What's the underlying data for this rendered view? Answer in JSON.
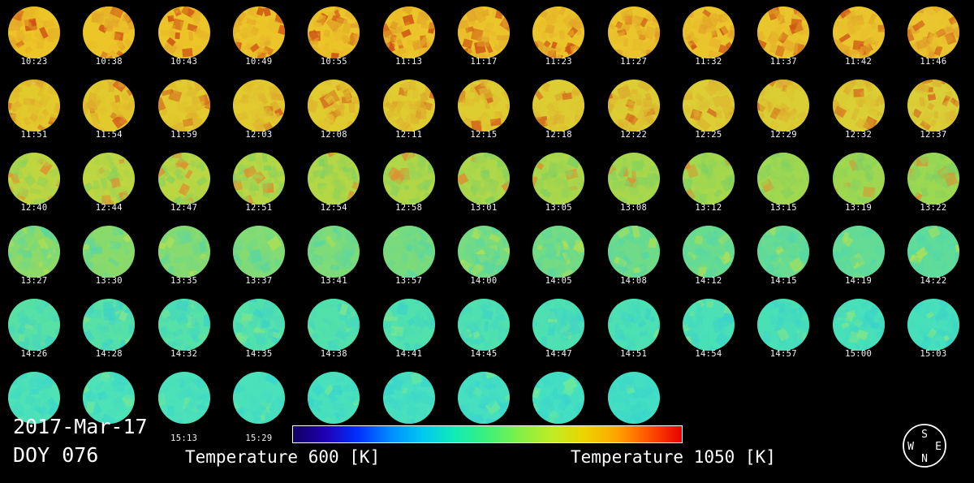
{
  "figure": {
    "date": "2017-Mar-17",
    "doy": "DOY 076",
    "colorbar": {
      "label_left": "Temperature 600 [K]",
      "label_right": "Temperature 1050 [K]",
      "min_k": 600,
      "max_k": 1050,
      "stops": [
        "#10005e",
        "#2000b4",
        "#0030ff",
        "#008cff",
        "#00c8f0",
        "#10ecb4",
        "#3cf078",
        "#82f046",
        "#c0ec24",
        "#ecd400",
        "#ffa400",
        "#ff5000",
        "#e80000"
      ]
    },
    "compass": {
      "top": "S",
      "bottom": "N",
      "left": "W",
      "right": "E"
    }
  },
  "grid": {
    "rows": [
      {
        "times": [
          "10:23",
          "10:38",
          "10:43",
          "10:49",
          "10:55",
          "11:13",
          "11:17",
          "11:23",
          "11:27",
          "11:32",
          "11:37",
          "11:42",
          "11:46"
        ],
        "palette": {
          "base": [
            "#ecc527",
            "#e9c62e"
          ],
          "spot": "#df9627",
          "speck": "#cf5214",
          "speck_prob": 0.2
        }
      },
      {
        "times": [
          "11:51",
          "11:54",
          "11:59",
          "12:03",
          "12:08",
          "12:11",
          "12:15",
          "12:18",
          "12:22",
          "12:25",
          "12:29",
          "12:32",
          "12:37"
        ],
        "palette": {
          "base": [
            "#e3ca2c",
            "#d9cf36"
          ],
          "spot": "#dda42b",
          "speck": "#d4641c",
          "speck_prob": 0.13
        }
      },
      {
        "times": [
          "12:40",
          "12:44",
          "12:47",
          "12:51",
          "12:54",
          "12:58",
          "13:01",
          "13:05",
          "13:08",
          "13:12",
          "13:15",
          "13:19",
          "13:22"
        ],
        "palette": {
          "base": [
            "#c0d63f",
            "#9cd852"
          ],
          "spot": "#79cf66",
          "speck": "#dd9030",
          "speck_prob": 0.1
        }
      },
      {
        "times": [
          "13:27",
          "13:30",
          "13:35",
          "13:37",
          "13:41",
          "13:57",
          "14:00",
          "14:05",
          "14:08",
          "14:12",
          "14:15",
          "14:19",
          "14:22"
        ],
        "palette": {
          "base": [
            "#8eda66",
            "#60dc99"
          ],
          "spot": "#4fd6ad",
          "speck": "#b0e052",
          "speck_prob": 0.1
        }
      },
      {
        "times": [
          "14:26",
          "14:28",
          "14:32",
          "14:35",
          "14:38",
          "14:41",
          "14:45",
          "14:47",
          "14:51",
          "14:54",
          "14:57",
          "15:00",
          "15:03"
        ],
        "palette": {
          "base": [
            "#58e1a4",
            "#47e0ba"
          ],
          "spot": "#38d0ce",
          "speck": "#7ee58c",
          "speck_prob": 0.09
        }
      },
      {
        "times": [
          "",
          "",
          "15:13",
          "15:29",
          "",
          "",
          "",
          "",
          ""
        ],
        "palette": {
          "base": [
            "#4fe2b5",
            "#43dec3"
          ],
          "spot": "#35d3d0",
          "speck": "#6ce79b",
          "speck_prob": 0.09
        }
      }
    ]
  },
  "chart_data": {
    "type": "heatmap",
    "title": "",
    "colorbar_label": "Temperature [K]",
    "scale_min_k": 600,
    "scale_max_k": 1050,
    "frame_times_by_row": [
      [
        "10:23",
        "10:38",
        "10:43",
        "10:49",
        "10:55",
        "11:13",
        "11:17",
        "11:23",
        "11:27",
        "11:32",
        "11:37",
        "11:42",
        "11:46"
      ],
      [
        "11:51",
        "11:54",
        "11:59",
        "12:03",
        "12:08",
        "12:11",
        "12:15",
        "12:18",
        "12:22",
        "12:25",
        "12:29",
        "12:32",
        "12:37"
      ],
      [
        "12:40",
        "12:44",
        "12:47",
        "12:51",
        "12:54",
        "12:58",
        "13:01",
        "13:05",
        "13:08",
        "13:12",
        "13:15",
        "13:19",
        "13:22"
      ],
      [
        "13:27",
        "13:30",
        "13:35",
        "13:37",
        "13:41",
        "13:57",
        "14:00",
        "14:05",
        "14:08",
        "14:12",
        "14:15",
        "14:19",
        "14:22"
      ],
      [
        "14:26",
        "14:28",
        "14:32",
        "14:35",
        "14:38",
        "14:41",
        "14:45",
        "14:47",
        "14:51",
        "14:54",
        "14:57",
        "15:00",
        "15:03"
      ],
      [
        "",
        "",
        "15:13",
        "15:29",
        "",
        "",
        "",
        "",
        ""
      ]
    ],
    "approx_mean_temp_k_by_row": [
      945,
      925,
      880,
      850,
      815,
      805
    ]
  }
}
